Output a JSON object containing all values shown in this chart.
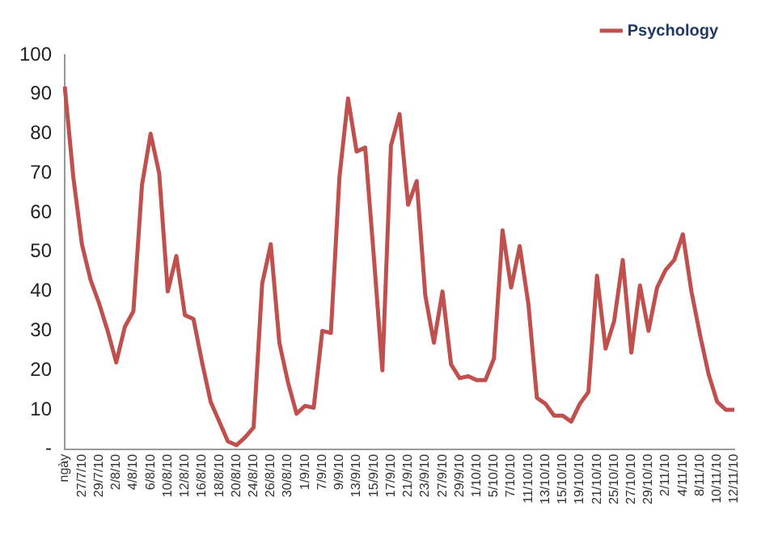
{
  "chart_data": {
    "type": "line",
    "categories": [
      "ngày",
      null,
      "27/7/10",
      null,
      "29/7/10",
      null,
      "2/8/10",
      null,
      "4/8/10",
      null,
      "6/8/10",
      null,
      "10/8/10",
      null,
      "12/8/10",
      null,
      "16/8/10",
      null,
      "18/8/10",
      null,
      "20/8/10",
      null,
      "24/8/10",
      null,
      "26/8/10",
      null,
      "30/8/10",
      null,
      "1/9/10",
      null,
      "7/9/10",
      null,
      "9/9/10",
      null,
      "13/9/10",
      null,
      "15/9/10",
      null,
      "17/9/10",
      null,
      "21/9/10",
      null,
      "23/9/10",
      null,
      "27/9/10",
      null,
      "29/9/10",
      null,
      "1/10/10",
      null,
      "5/10/10",
      null,
      "7/10/10",
      null,
      "11/10/10",
      null,
      "13/10/10",
      null,
      "15/10/10",
      null,
      "19/10/10",
      null,
      "21/10/10",
      null,
      "25/10/10",
      null,
      "27/10/10",
      null,
      "29/10/10",
      null,
      "2/11/10",
      null,
      "4/11/10",
      null,
      "8/11/10",
      null,
      "10/11/10",
      null,
      "12/11/10"
    ],
    "series": [
      {
        "name": "Psychology",
        "color": "#c0504d",
        "values": [
          92,
          69,
          52,
          43,
          37,
          30,
          22,
          31,
          35,
          67,
          80,
          70,
          40,
          49,
          34,
          33,
          22,
          12,
          7,
          2,
          1,
          3,
          5.5,
          42,
          52,
          27,
          17,
          9,
          11,
          10.5,
          30,
          29.5,
          69,
          89,
          75.5,
          76.5,
          49,
          20,
          77,
          85,
          62,
          68,
          39,
          27,
          40,
          21.5,
          18,
          18.5,
          17.5,
          17.5,
          23,
          55.5,
          41,
          51.5,
          37,
          13,
          11.5,
          8.5,
          8.5,
          7,
          11.5,
          14.5,
          44,
          25.5,
          32.5,
          48,
          24.5,
          41.5,
          30,
          41,
          45.5,
          48,
          54.5,
          40,
          29,
          19,
          12,
          10,
          10
        ]
      }
    ],
    "ylim": [
      0,
      100
    ],
    "yticks": [
      {
        "value": 0,
        "label": "-"
      },
      10,
      20,
      30,
      40,
      50,
      60,
      70,
      80,
      90,
      100
    ],
    "grid": false,
    "legend": "top right",
    "marker": "none",
    "line_style": "solid"
  }
}
